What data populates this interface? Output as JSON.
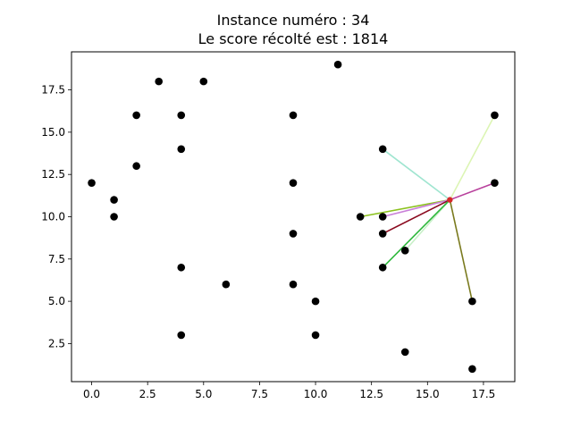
{
  "chart_data": {
    "type": "scatter",
    "title_lines": [
      "Instance numéro : 34",
      "Le score récolté est : 1814"
    ],
    "xlabel": "",
    "ylabel": "",
    "xlim": [
      -0.9,
      18.9
    ],
    "ylim": [
      0.25,
      19.75
    ],
    "grid": false,
    "x_ticks": [
      {
        "value": 0,
        "label": "0.0"
      },
      {
        "value": 2.5,
        "label": "2.5"
      },
      {
        "value": 5,
        "label": "5.0"
      },
      {
        "value": 7.5,
        "label": "7.5"
      },
      {
        "value": 10,
        "label": "10.0"
      },
      {
        "value": 12.5,
        "label": "12.5"
      },
      {
        "value": 15,
        "label": "15.0"
      },
      {
        "value": 17.5,
        "label": "17.5"
      }
    ],
    "y_ticks": [
      {
        "value": 2.5,
        "label": "2.5"
      },
      {
        "value": 5,
        "label": "5.0"
      },
      {
        "value": 7.5,
        "label": "7.5"
      },
      {
        "value": 10,
        "label": "10.0"
      },
      {
        "value": 12.5,
        "label": "12.5"
      },
      {
        "value": 15,
        "label": "15.0"
      },
      {
        "value": 17.5,
        "label": "17.5"
      }
    ],
    "point_color": "#000000",
    "points": [
      [
        0,
        12
      ],
      [
        1,
        11
      ],
      [
        1,
        10
      ],
      [
        2,
        16
      ],
      [
        2,
        13
      ],
      [
        3,
        18
      ],
      [
        4,
        16
      ],
      [
        4,
        14
      ],
      [
        4,
        7
      ],
      [
        4,
        3
      ],
      [
        5,
        18
      ],
      [
        6,
        6
      ],
      [
        9,
        16
      ],
      [
        9,
        12
      ],
      [
        9,
        9
      ],
      [
        9,
        6
      ],
      [
        10,
        5
      ],
      [
        10,
        3
      ],
      [
        11,
        19
      ],
      [
        12,
        10
      ],
      [
        13,
        14
      ],
      [
        13,
        10
      ],
      [
        13,
        9
      ],
      [
        13,
        7
      ],
      [
        14,
        8
      ],
      [
        14,
        2
      ],
      [
        17,
        5
      ],
      [
        17,
        1
      ],
      [
        18,
        16
      ],
      [
        18,
        12
      ]
    ],
    "hub": {
      "x": 16,
      "y": 11,
      "color": "#d62728"
    },
    "segments": [
      {
        "from": [
          16,
          11
        ],
        "to": [
          13,
          14
        ],
        "color": "#9fe5d0"
      },
      {
        "from": [
          16,
          11
        ],
        "to": [
          18,
          16
        ],
        "color": "#dcf5b4"
      },
      {
        "from": [
          16,
          11
        ],
        "to": [
          18,
          12
        ],
        "color": "#b8409c"
      },
      {
        "from": [
          16,
          11
        ],
        "to": [
          12,
          10
        ],
        "color": "#8bc21e"
      },
      {
        "from": [
          16,
          11
        ],
        "to": [
          13,
          10
        ],
        "color": "#c97fd8"
      },
      {
        "from": [
          16,
          11
        ],
        "to": [
          13,
          9
        ],
        "color": "#8b0a1f"
      },
      {
        "from": [
          16,
          11
        ],
        "to": [
          14,
          8
        ],
        "color": "#c8f0c8"
      },
      {
        "from": [
          16,
          11
        ],
        "to": [
          13,
          7
        ],
        "color": "#2eb83c"
      },
      {
        "from": [
          16,
          11
        ],
        "to": [
          17,
          5
        ],
        "color": "#7a7a1e"
      }
    ]
  }
}
